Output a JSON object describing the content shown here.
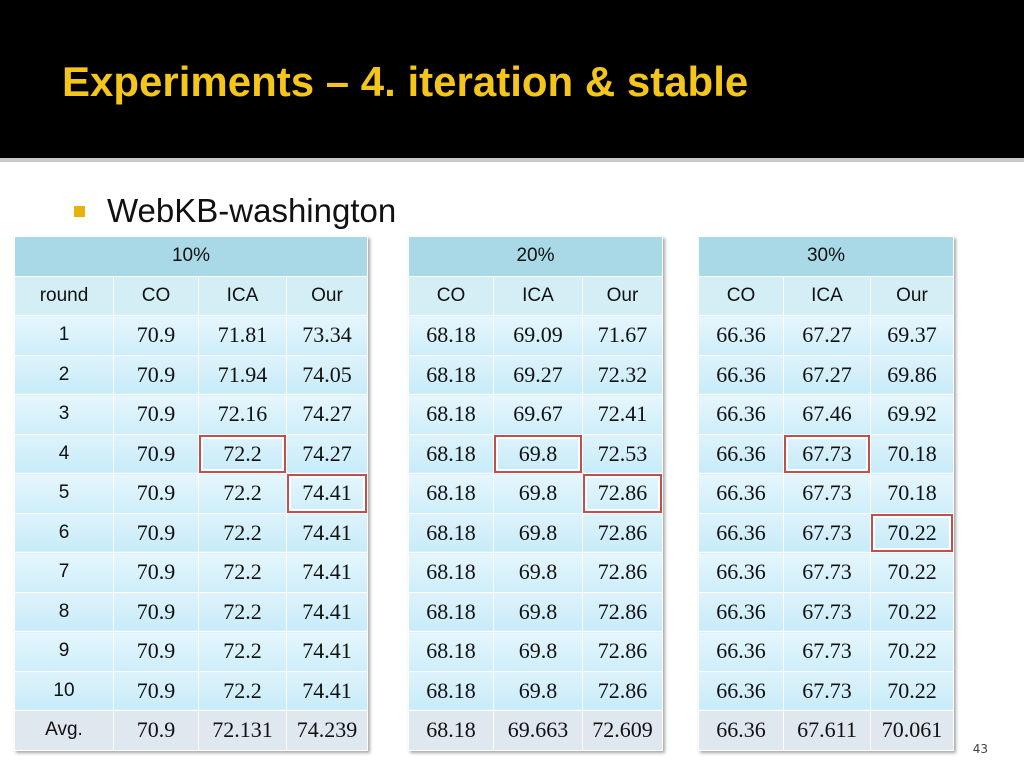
{
  "header": {
    "title": "Experiments – 4. iteration & stable"
  },
  "bullet": "WebKB-washington",
  "tables": [
    {
      "group": "10%",
      "columns": [
        "round",
        "CO",
        "ICA",
        "Our"
      ],
      "rows": [
        [
          "1",
          "70.9",
          "71.81",
          "73.34"
        ],
        [
          "2",
          "70.9",
          "71.94",
          "74.05"
        ],
        [
          "3",
          "70.9",
          "72.16",
          "74.27"
        ],
        [
          "4",
          "70.9",
          "72.2",
          "74.27"
        ],
        [
          "5",
          "70.9",
          "72.2",
          "74.41"
        ],
        [
          "6",
          "70.9",
          "72.2",
          "74.41"
        ],
        [
          "7",
          "70.9",
          "72.2",
          "74.41"
        ],
        [
          "8",
          "70.9",
          "72.2",
          "74.41"
        ],
        [
          "9",
          "70.9",
          "72.2",
          "74.41"
        ],
        [
          "10",
          "70.9",
          "72.2",
          "74.41"
        ],
        [
          "Avg.",
          "70.9",
          "72.131",
          "74.239"
        ]
      ]
    },
    {
      "group": "20%",
      "columns": [
        "CO",
        "ICA",
        "Our"
      ],
      "rows": [
        [
          "68.18",
          "69.09",
          "71.67"
        ],
        [
          "68.18",
          "69.27",
          "72.32"
        ],
        [
          "68.18",
          "69.67",
          "72.41"
        ],
        [
          "68.18",
          "69.8",
          "72.53"
        ],
        [
          "68.18",
          "69.8",
          "72.86"
        ],
        [
          "68.18",
          "69.8",
          "72.86"
        ],
        [
          "68.18",
          "69.8",
          "72.86"
        ],
        [
          "68.18",
          "69.8",
          "72.86"
        ],
        [
          "68.18",
          "69.8",
          "72.86"
        ],
        [
          "68.18",
          "69.8",
          "72.86"
        ],
        [
          "68.18",
          "69.663",
          "72.609"
        ]
      ]
    },
    {
      "group": "30%",
      "columns": [
        "CO",
        "ICA",
        "Our"
      ],
      "rows": [
        [
          "66.36",
          "67.27",
          "69.37"
        ],
        [
          "66.36",
          "67.27",
          "69.86"
        ],
        [
          "66.36",
          "67.46",
          "69.92"
        ],
        [
          "66.36",
          "67.73",
          "70.18"
        ],
        [
          "66.36",
          "67.73",
          "70.18"
        ],
        [
          "66.36",
          "67.73",
          "70.22"
        ],
        [
          "66.36",
          "67.73",
          "70.22"
        ],
        [
          "66.36",
          "67.73",
          "70.22"
        ],
        [
          "66.36",
          "67.73",
          "70.22"
        ],
        [
          "66.36",
          "67.73",
          "70.22"
        ],
        [
          "66.36",
          "67.611",
          "70.061"
        ]
      ]
    }
  ],
  "page_number": "43"
}
